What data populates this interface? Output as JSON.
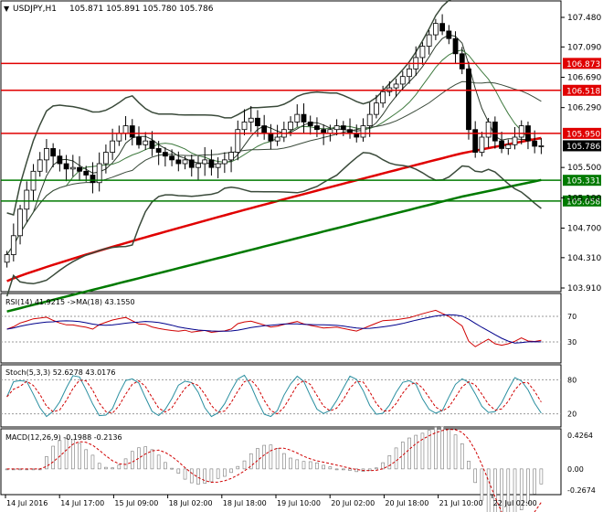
{
  "header": {
    "symbol": "USDJPY,H1",
    "ohlc": "105.871 105.891 105.780 105.786"
  },
  "colors": {
    "level_red": "#e00000",
    "level_green": "#007a00",
    "ma_red": "#e00000",
    "ma_green": "#007a00",
    "bands": "#3a4a3a",
    "candle": "#000000",
    "price_tag_bg": "#000000"
  },
  "price_axis": {
    "ticks": [
      "107.480",
      "107.090",
      "106.690",
      "106.290",
      "105.500",
      "105.100",
      "104.700",
      "104.310",
      "103.910"
    ],
    "current_price": "105.786"
  },
  "levels": [
    {
      "label": "106.873",
      "color": "#e00000"
    },
    {
      "label": "106.518",
      "color": "#e00000"
    },
    {
      "label": "105.950",
      "color": "#e00000"
    },
    {
      "label": "105.331",
      "color": "#007a00"
    },
    {
      "label": "105.058",
      "color": "#007a00"
    }
  ],
  "rsi": {
    "title": "RSI(14) 41.9215  ->MA(18) 43.1550",
    "ticks": [
      "70",
      "30"
    ]
  },
  "stoch": {
    "title": "Stoch(5,3,3) 52.6278 43.0176",
    "ticks": [
      "80",
      "20"
    ]
  },
  "macd": {
    "title": "MACD(12,26,9) -0.1988 -0.2136",
    "ticks": [
      "0.4264",
      "0.00",
      "-0.2674"
    ]
  },
  "time_axis": {
    "labels": [
      "14 Jul 2016",
      "14 Jul 17:00",
      "15 Jul 09:00",
      "18 Jul 02:00",
      "18 Jul 18:00",
      "19 Jul 10:00",
      "20 Jul 02:00",
      "20 Jul 18:00",
      "21 Jul 10:00",
      "22 Jul 02:00"
    ]
  },
  "chart_data": {
    "type": "candlestick",
    "symbol": "USDJPY",
    "timeframe": "H1",
    "ylim": [
      103.91,
      107.48
    ],
    "close_series": [
      104.35,
      104.6,
      104.95,
      105.2,
      105.45,
      105.6,
      105.75,
      105.65,
      105.55,
      105.48,
      105.5,
      105.45,
      105.4,
      105.3,
      105.55,
      105.7,
      105.85,
      105.95,
      106.05,
      105.9,
      105.8,
      105.85,
      105.75,
      105.7,
      105.65,
      105.6,
      105.55,
      105.6,
      105.5,
      105.55,
      105.6,
      105.5,
      105.55,
      105.6,
      105.7,
      106.0,
      106.1,
      106.15,
      106.05,
      105.95,
      105.85,
      105.9,
      106.0,
      106.1,
      106.2,
      106.1,
      106.05,
      106.0,
      105.95,
      106.0,
      106.05,
      106.0,
      105.95,
      105.9,
      106.05,
      106.2,
      106.35,
      106.5,
      106.55,
      106.6,
      106.7,
      106.8,
      106.95,
      107.1,
      107.25,
      107.4,
      107.3,
      107.2,
      107.0,
      106.8,
      106.0,
      105.7,
      105.9,
      106.1,
      105.85,
      105.75,
      105.8,
      105.9,
      106.05,
      105.85,
      105.78,
      105.786
    ],
    "levels": [
      106.873,
      106.518,
      105.95,
      105.331,
      105.058
    ],
    "last_price": 105.786,
    "indicators": {
      "RSI": {
        "period": 14,
        "value": 41.9215,
        "ma_period": 18,
        "ma_value": 43.155,
        "levels": [
          70,
          30
        ]
      },
      "Stoch": {
        "params": [
          5,
          3,
          3
        ],
        "k": 52.6278,
        "d": 43.0176,
        "levels": [
          80,
          20
        ]
      },
      "MACD": {
        "params": [
          12,
          26,
          9
        ],
        "main": -0.1988,
        "signal": -0.2136,
        "range": [
          -0.2674,
          0.4264
        ]
      }
    },
    "x_labels": [
      "14 Jul 2016",
      "14 Jul 17:00",
      "15 Jul 09:00",
      "18 Jul 02:00",
      "18 Jul 18:00",
      "19 Jul 10:00",
      "20 Jul 02:00",
      "20 Jul 18:00",
      "21 Jul 10:00",
      "22 Jul 02:00"
    ]
  }
}
